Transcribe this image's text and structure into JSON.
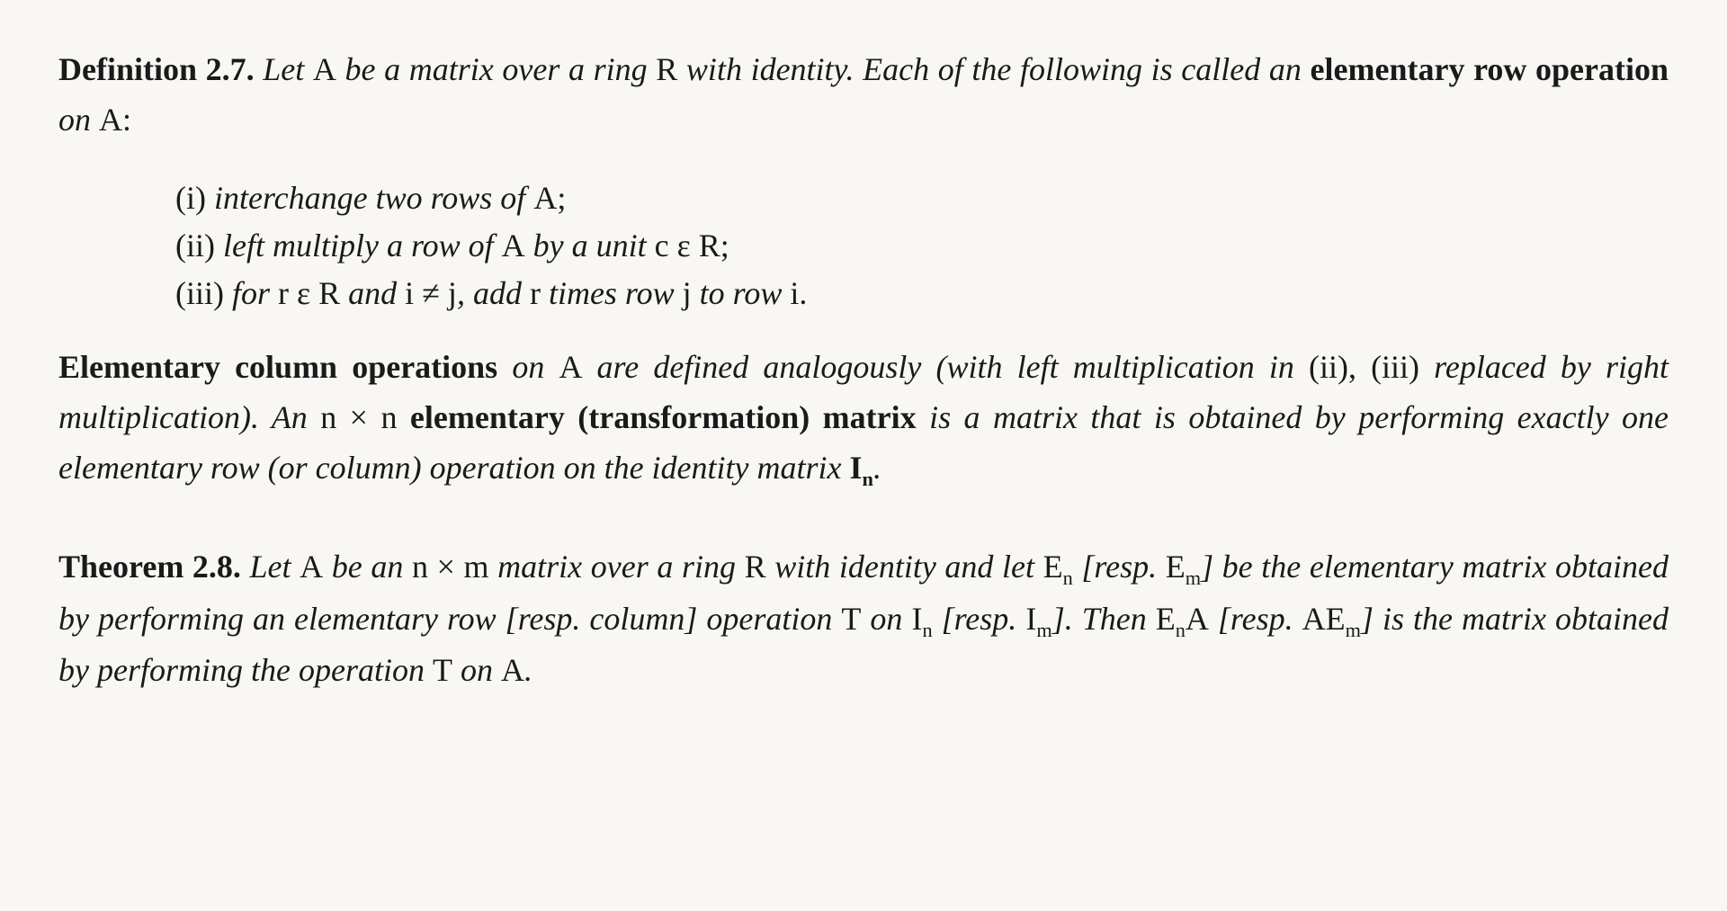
{
  "typography": {
    "font_family": "Georgia, 'Times New Roman', serif",
    "body_fontsize_pt": 27,
    "line_height": 1.55,
    "text_color": "#1a1a1a",
    "background_color": "#f8f7f4",
    "bold_weight": 700
  },
  "def": {
    "label": "Definition 2.7.",
    "lead1": "Let ",
    "A1": "A",
    "lead2": " be a matrix over a ring ",
    "R1": "R",
    "lead3": " with identity. Each of the following is called an ",
    "term": "elementary row operation",
    "lead4": " on ",
    "A2": "A",
    "lead5": ":",
    "items": {
      "i": {
        "num": "(i) ",
        "t1": "interchange two rows of ",
        "A": "A",
        "t2": ";"
      },
      "ii": {
        "num": "(ii) ",
        "t1": "left multiply a row of ",
        "A": "A",
        "t2": " by a unit ",
        "c": "c",
        "eps": " ε ",
        "R": "R",
        "t3": ";"
      },
      "iii": {
        "num": "(iii) ",
        "t1": "for ",
        "r": "r",
        "eps1": " ε ",
        "R": "R",
        "t2": " and ",
        "i": "i",
        "neq": " ≠ ",
        "j": "j",
        "t3": ", add ",
        "r2": "r",
        "t4": " times row ",
        "j2": "j",
        "t5": " to row ",
        "i2": "i",
        "t6": "."
      }
    },
    "col": {
      "term1": "Elementary column operations",
      "t1": " on ",
      "A": "A",
      "t2": " are defined analogously (with left multiplication in ",
      "ii": "(ii)",
      "t3": ", ",
      "iii": "(iii)",
      "t4": " replaced by right multiplication). An ",
      "nxn": "n × n",
      "term2": " elementary (transformation) matrix",
      "t5": " is a matrix that is obtained by performing exactly one elementary row (or column) operation on the identity matrix ",
      "I": "I",
      "Isub": "n",
      "t6": "."
    }
  },
  "thm": {
    "label": "Theorem 2.8.",
    "t1": " Let ",
    "A": "A",
    "t2": " be an ",
    "nxm": "n × m",
    "t3": " matrix over a ring ",
    "R": "R",
    "t4": " with identity and let ",
    "En": "E",
    "Ensub": "n",
    "t5": " [resp. ",
    "Em": "E",
    "Emsub": "m",
    "t6": "] be the elementary matrix obtained by performing an elementary row [resp. column] operation ",
    "T1": "T",
    "t7": " on ",
    "In": "I",
    "Insub": "n",
    "t8": " [resp. ",
    "Im": "I",
    "Imsub": "m",
    "t9": "]. Then ",
    "EnA_E": "E",
    "EnA_sub": "n",
    "EnA_A": "A",
    "t10": " [resp. ",
    "AEm_A": "A",
    "AEm_E": "E",
    "AEm_sub": "m",
    "t11": "] is the matrix obtained by performing the operation ",
    "T2": "T",
    "t12": " on ",
    "A2": "A",
    "t13": "."
  }
}
